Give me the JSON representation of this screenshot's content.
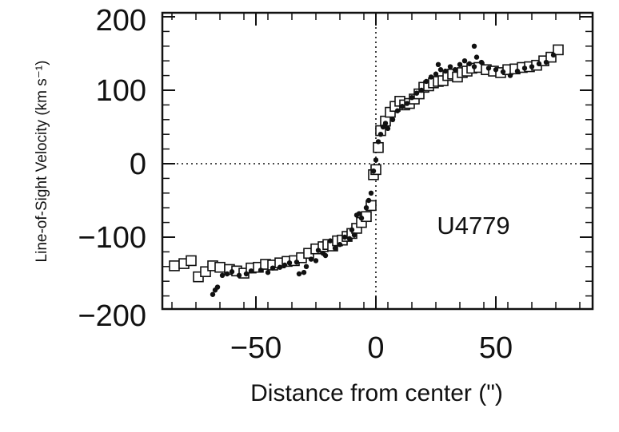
{
  "chart_data": {
    "type": "scatter",
    "annotation": "U4779",
    "xlabel": "Distance from center (\")",
    "ylabel": "Line-of-Sight Velocity (km s⁻¹)",
    "xlim": [
      -90,
      90
    ],
    "ylim": [
      -200,
      200
    ],
    "x_ticks": [
      -50,
      0,
      50
    ],
    "y_ticks": [
      -200,
      -100,
      0,
      100,
      200
    ],
    "x_tick_labels": [
      "−50",
      "0",
      "50"
    ],
    "y_tick_labels": [
      "−200",
      "−100",
      "0",
      "100",
      "200"
    ],
    "reference_lines": {
      "x": 0,
      "y": 0,
      "style": "dotted"
    },
    "grid": false,
    "series": [
      {
        "marker": "open-square",
        "points": [
          [
            -84,
            -139
          ],
          [
            -80,
            -136
          ],
          [
            -77,
            -132
          ],
          [
            -74,
            -154
          ],
          [
            -71,
            -147
          ],
          [
            -68,
            -139
          ],
          [
            -65,
            -141
          ],
          [
            -61,
            -144
          ],
          [
            -58,
            -146
          ],
          [
            -55,
            -149
          ],
          [
            -52,
            -142
          ],
          [
            -49,
            -141
          ],
          [
            -46,
            -137
          ],
          [
            -43,
            -138
          ],
          [
            -40,
            -135
          ],
          [
            -37,
            -133
          ],
          [
            -34,
            -132
          ],
          [
            -31,
            -128
          ],
          [
            -28,
            -122
          ],
          [
            -25,
            -116
          ],
          [
            -22,
            -113
          ],
          [
            -20,
            -110
          ],
          [
            -18,
            -112
          ],
          [
            -16,
            -105
          ],
          [
            -14,
            -104
          ],
          [
            -12,
            -99
          ],
          [
            -10,
            -95
          ],
          [
            -8,
            -88
          ],
          [
            -6,
            -80
          ],
          [
            -4,
            -72
          ],
          [
            -2,
            -57
          ],
          [
            -1,
            -15
          ],
          [
            0,
            -8
          ],
          [
            1,
            22
          ],
          [
            2,
            45
          ],
          [
            4,
            58
          ],
          [
            6,
            70
          ],
          [
            8,
            78
          ],
          [
            10,
            85
          ],
          [
            12,
            80
          ],
          [
            14,
            82
          ],
          [
            16,
            88
          ],
          [
            18,
            95
          ],
          [
            20,
            104
          ],
          [
            22,
            106
          ],
          [
            24,
            110
          ],
          [
            26,
            112
          ],
          [
            28,
            113
          ],
          [
            30,
            120
          ],
          [
            32,
            122
          ],
          [
            34,
            118
          ],
          [
            36,
            124
          ],
          [
            38,
            126
          ],
          [
            40,
            130
          ],
          [
            43,
            131
          ],
          [
            46,
            128
          ],
          [
            49,
            126
          ],
          [
            52,
            124
          ],
          [
            55,
            128
          ],
          [
            58,
            129
          ],
          [
            61,
            131
          ],
          [
            64,
            132
          ],
          [
            67,
            134
          ],
          [
            70,
            140
          ],
          [
            73,
            145
          ],
          [
            76,
            155
          ]
        ]
      },
      {
        "marker": "filled-circle",
        "points": [
          [
            -68,
            -178
          ],
          [
            -67,
            -172
          ],
          [
            -66,
            -168
          ],
          [
            -64,
            -152
          ],
          [
            -62,
            -150
          ],
          [
            -60,
            -147
          ],
          [
            -57,
            -152
          ],
          [
            -54,
            -150
          ],
          [
            -52,
            -146
          ],
          [
            -48,
            -145
          ],
          [
            -45,
            -148
          ],
          [
            -43,
            -142
          ],
          [
            -40,
            -141
          ],
          [
            -38,
            -138
          ],
          [
            -36,
            -135
          ],
          [
            -33,
            -134
          ],
          [
            -32,
            -150
          ],
          [
            -30,
            -148
          ],
          [
            -29,
            -140
          ],
          [
            -27,
            -130
          ],
          [
            -25,
            -132
          ],
          [
            -24,
            -118
          ],
          [
            -22,
            -122
          ],
          [
            -21,
            -125
          ],
          [
            -19,
            -105
          ],
          [
            -17,
            -115
          ],
          [
            -15,
            -110
          ],
          [
            -13,
            -100
          ],
          [
            -11,
            -102
          ],
          [
            -10,
            -90
          ],
          [
            -9,
            -97
          ],
          [
            -8,
            -70
          ],
          [
            -7,
            -68
          ],
          [
            -6,
            -74
          ],
          [
            -4,
            -60
          ],
          [
            -3,
            -50
          ],
          [
            -2,
            -40
          ],
          [
            -1,
            -10
          ],
          [
            0,
            5
          ],
          [
            1,
            30
          ],
          [
            2,
            40
          ],
          [
            3,
            50
          ],
          [
            4,
            55
          ],
          [
            5,
            48
          ],
          [
            7,
            60
          ],
          [
            9,
            72
          ],
          [
            11,
            78
          ],
          [
            13,
            82
          ],
          [
            15,
            90
          ],
          [
            17,
            96
          ],
          [
            19,
            100
          ],
          [
            21,
            112
          ],
          [
            23,
            118
          ],
          [
            25,
            122
          ],
          [
            27,
            128
          ],
          [
            29,
            126
          ],
          [
            31,
            132
          ],
          [
            33,
            128
          ],
          [
            35,
            135
          ],
          [
            37,
            140
          ],
          [
            39,
            136
          ],
          [
            41,
            132
          ],
          [
            42,
            145
          ],
          [
            44,
            138
          ],
          [
            47,
            130
          ],
          [
            50,
            128
          ],
          [
            53,
            125
          ],
          [
            56,
            120
          ],
          [
            59,
            126
          ],
          [
            62,
            130
          ],
          [
            65,
            132
          ],
          [
            68,
            136
          ],
          [
            71,
            138
          ],
          [
            74,
            148
          ],
          [
            41,
            160
          ],
          [
            26,
            135
          ]
        ]
      }
    ]
  }
}
